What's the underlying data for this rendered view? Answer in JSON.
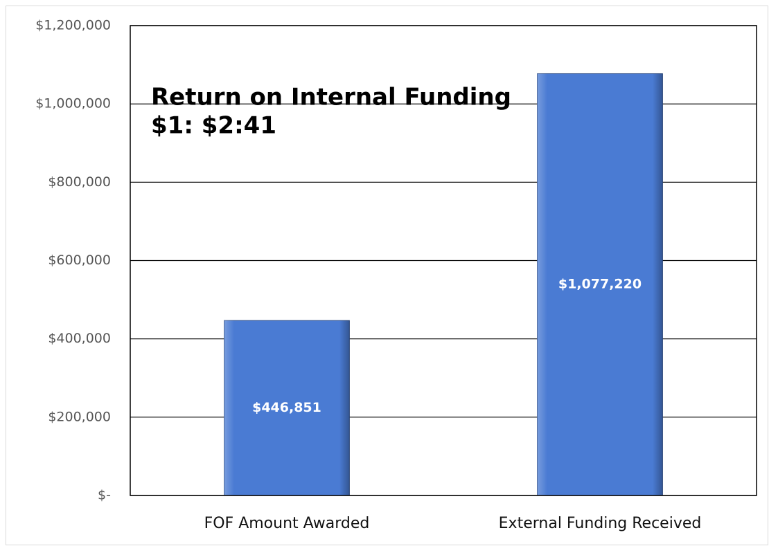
{
  "chart_data": {
    "type": "bar",
    "title": "Return on Internal Funding",
    "subtitle": "$1: $2:41",
    "categories": [
      "FOF Amount Awarded",
      "External Funding Received"
    ],
    "values": [
      446851,
      1077220
    ],
    "value_labels": [
      "$446,851",
      "$1,077,220"
    ],
    "color": "#4a7bd3",
    "ylim": [
      0,
      1200000
    ],
    "yticks": [
      {
        "value": 0,
        "label": "$-"
      },
      {
        "value": 200000,
        "label": "$200,000"
      },
      {
        "value": 400000,
        "label": "$400,000"
      },
      {
        "value": 600000,
        "label": "$600,000"
      },
      {
        "value": 800000,
        "label": "$800,000"
      },
      {
        "value": 1000000,
        "label": "$1,000,000"
      },
      {
        "value": 1200000,
        "label": "$1,200,000"
      }
    ],
    "grid": true
  }
}
